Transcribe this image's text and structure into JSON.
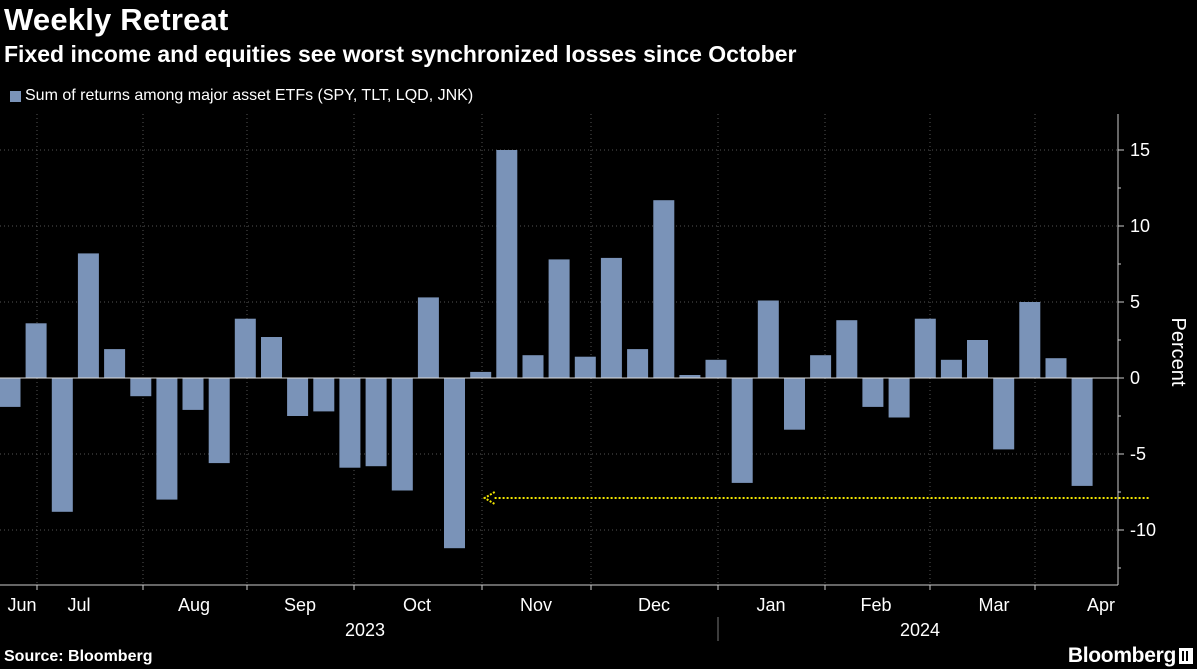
{
  "chart_data": {
    "type": "bar",
    "title": "Weekly Retreat",
    "subtitle": "Fixed income and equities see worst synchronized losses since October",
    "legend": "Sum of returns among major asset ETFs (SPY, TLT, LQD, JNK)",
    "ylabel": "Percent",
    "ylim": [
      -12.5,
      17.5
    ],
    "yticks": [
      -10,
      -5,
      0,
      5,
      10,
      15
    ],
    "grid": true,
    "legend_position": "top-left",
    "bar_color": "#7a93b8",
    "month_labels": [
      "Jun",
      "Jul",
      "Aug",
      "Sep",
      "Oct",
      "Nov",
      "Dec",
      "Jan",
      "Feb",
      "Mar",
      "Apr"
    ],
    "year_labels": [
      "2023",
      "2024"
    ],
    "annotation": {
      "type": "dotted-arrow",
      "color": "#f2e600",
      "level": -7.5,
      "from_bar": 44,
      "to_bar": 18
    },
    "values": [
      -1.9,
      3.6,
      -8.8,
      8.2,
      1.9,
      -1.2,
      -8.0,
      -2.1,
      -5.6,
      3.9,
      2.7,
      -2.5,
      -2.2,
      -5.9,
      -5.8,
      -7.4,
      5.3,
      -11.2,
      0.4,
      15.0,
      1.5,
      7.8,
      1.4,
      7.9,
      1.9,
      11.7,
      0.2,
      1.2,
      -6.9,
      5.1,
      -3.4,
      1.5,
      3.8,
      -1.9,
      -2.6,
      3.9,
      1.2,
      2.5,
      -4.7,
      5.0,
      1.3,
      -7.1
    ]
  },
  "source": "Source: Bloomberg",
  "brand": "Bloomberg"
}
